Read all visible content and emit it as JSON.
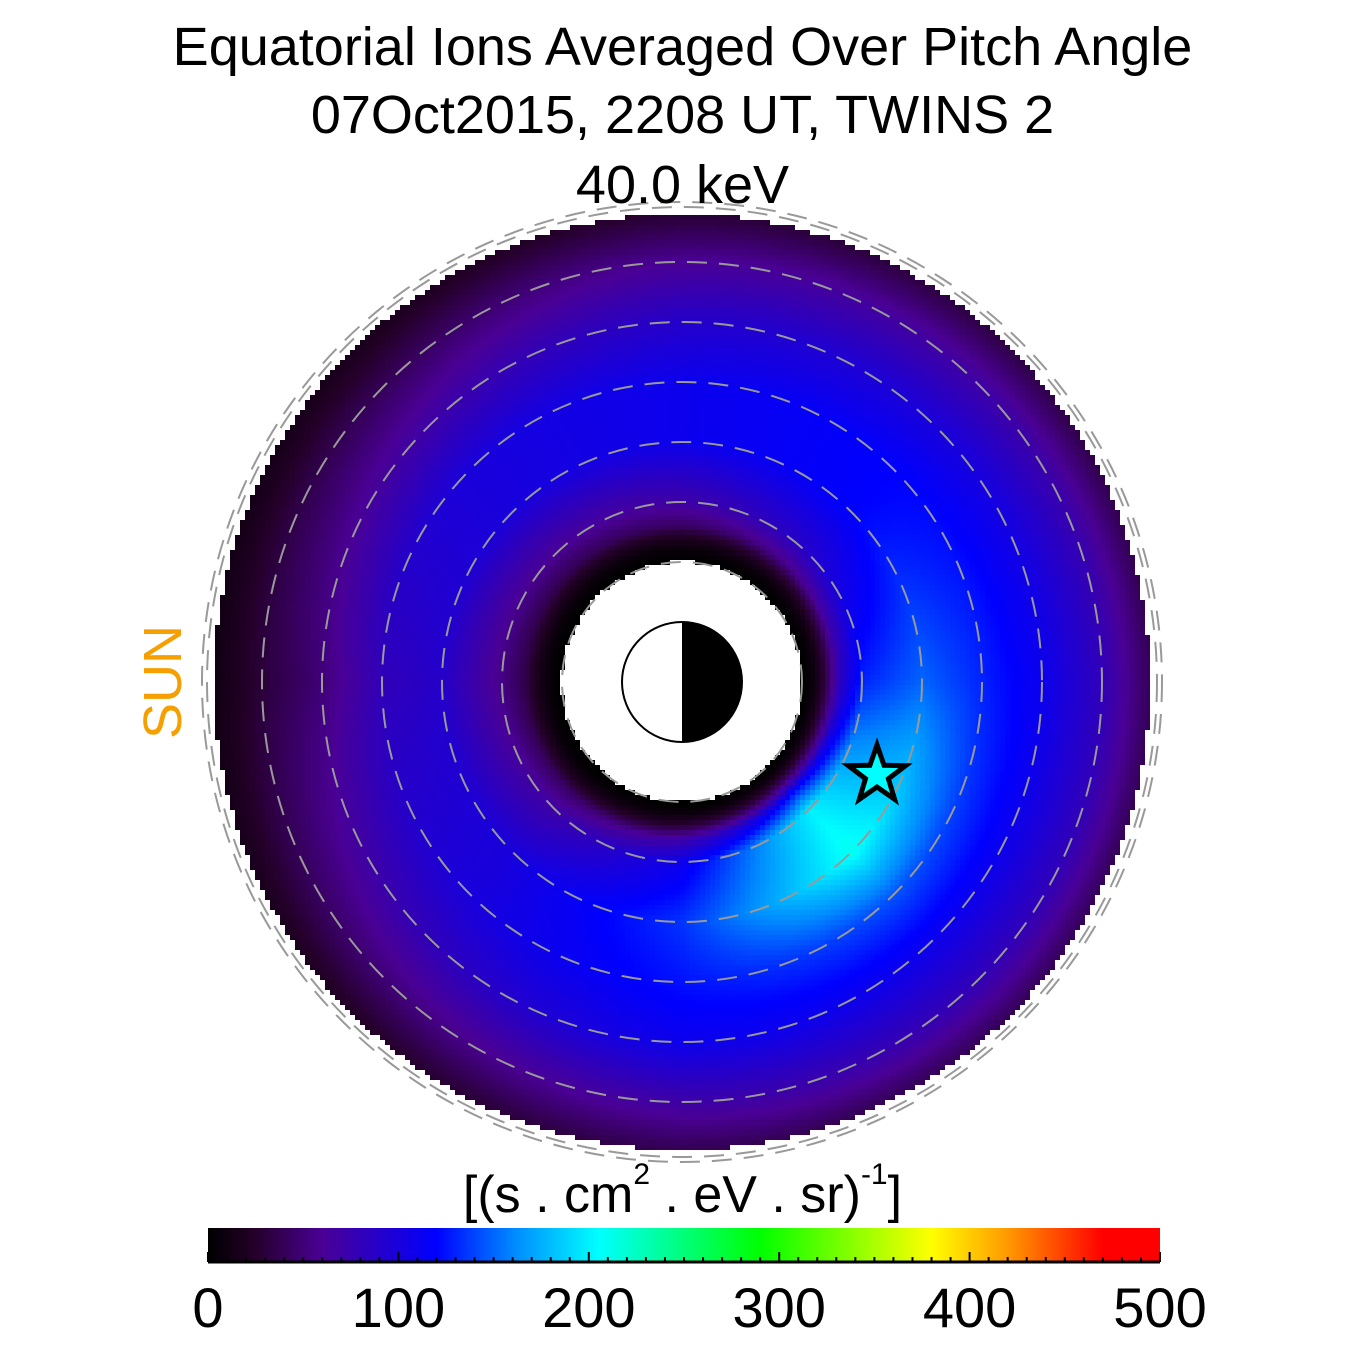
{
  "title": {
    "line1": "Equatorial Ions Averaged Over Pitch Angle",
    "line2": "07Oct2015, 2208 UT,  TWINS 2",
    "line3": "40.0 keV"
  },
  "sun_label": "SUN",
  "colors": {
    "sun_label": "#f5a000",
    "grid_circles": "#999999"
  },
  "chart_data": {
    "type": "heatmap",
    "projection": "polar equatorial plane, Sun to the left",
    "units_label": {
      "prefix": "[(s . cm",
      "sup1": "2",
      "middle": " . eV . sr)",
      "sup2": "-1",
      "suffix": "]"
    },
    "colorbar": {
      "range": [
        0,
        500
      ],
      "tick_labels": [
        "0",
        "100",
        "200",
        "300",
        "400",
        "500"
      ],
      "tick_values": [
        0,
        100,
        200,
        300,
        400,
        500
      ],
      "minor_step": 10,
      "stops": [
        [
          0,
          "#000000"
        ],
        [
          25,
          "#25002a"
        ],
        [
          60,
          "#4a0095"
        ],
        [
          120,
          "#0000ff"
        ],
        [
          160,
          "#0088ff"
        ],
        [
          205,
          "#00ffff"
        ],
        [
          290,
          "#00ff00"
        ],
        [
          380,
          "#ffff00"
        ],
        [
          420,
          "#ff9900"
        ],
        [
          470,
          "#ff0000"
        ],
        [
          500,
          "#ff0000"
        ]
      ]
    },
    "radial_grid_RE": [
      2,
      3,
      4,
      5,
      6,
      7,
      8
    ],
    "mlt_hours": [
      0,
      3,
      6,
      9,
      12,
      15,
      18,
      21
    ],
    "flux_grid": [
      [
        5,
        5,
        5,
        5,
        5,
        5,
        5,
        5
      ],
      [
        130,
        90,
        70,
        60,
        55,
        70,
        110,
        200
      ],
      [
        150,
        120,
        110,
        100,
        90,
        100,
        135,
        210
      ],
      [
        130,
        120,
        110,
        100,
        80,
        100,
        125,
        145
      ],
      [
        110,
        100,
        90,
        70,
        50,
        80,
        110,
        110
      ],
      [
        80,
        70,
        60,
        40,
        30,
        50,
        70,
        80
      ],
      [
        30,
        25,
        20,
        10,
        5,
        15,
        30,
        30
      ]
    ],
    "marker": {
      "type": "star",
      "r_RE": 3.6,
      "mlt": 22.3
    },
    "earth": {
      "dayside": "white",
      "nightside": "black"
    }
  }
}
